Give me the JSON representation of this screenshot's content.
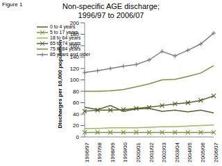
{
  "chart_data": {
    "type": "line",
    "title": "Non-specific AGE discharge; 1996/97 to 2006/07",
    "annotations": [
      "Figure 1"
    ],
    "y_label": "Discharges per 10,000 population",
    "categories": [
      "1996/97",
      "1997/98",
      "1998/99",
      "1999/00",
      "2000/01",
      "2001/02",
      "2002/03",
      "2003/04",
      "2004/05",
      "2005/06",
      "2006/07"
    ],
    "series": [
      {
        "name": "0 to 4 years",
        "color": "#4f6228",
        "marker": "none",
        "values": [
          52,
          48,
          55,
          45,
          49,
          50,
          45,
          47,
          44,
          47,
          42
        ]
      },
      {
        "name": "5 to 17 years",
        "color": "#77933c",
        "marker": "x",
        "values": [
          8,
          8,
          8,
          8,
          8,
          8,
          8,
          8,
          8,
          8,
          8
        ]
      },
      {
        "name": "18 to 64 years",
        "color": "#9bbb59",
        "marker": "none",
        "values": [
          15,
          15,
          16,
          16,
          16,
          17,
          18,
          18,
          19,
          20,
          21
        ]
      },
      {
        "name": "65 to 74 years",
        "color": "#4f6228",
        "marker": "x",
        "values": [
          45,
          47,
          47,
          48,
          50,
          52,
          55,
          58,
          60,
          64,
          72
        ]
      },
      {
        "name": "75 to 84 years",
        "color": "#76923c",
        "marker": "none",
        "values": [
          80,
          80,
          81,
          83,
          88,
          93,
          100,
          101,
          106,
          112,
          125
        ]
      },
      {
        "name": "85 years and older",
        "color": "#7f7f7f",
        "marker": "plus",
        "values": [
          113,
          116,
          120,
          124,
          127,
          135,
          150,
          142,
          152,
          163,
          182
        ]
      }
    ],
    "ylim": [
      0,
      200
    ],
    "yticks": [
      0,
      20,
      40,
      60,
      80,
      100,
      120,
      140,
      160,
      180,
      200
    ],
    "grid": false,
    "legend": "top-left"
  }
}
